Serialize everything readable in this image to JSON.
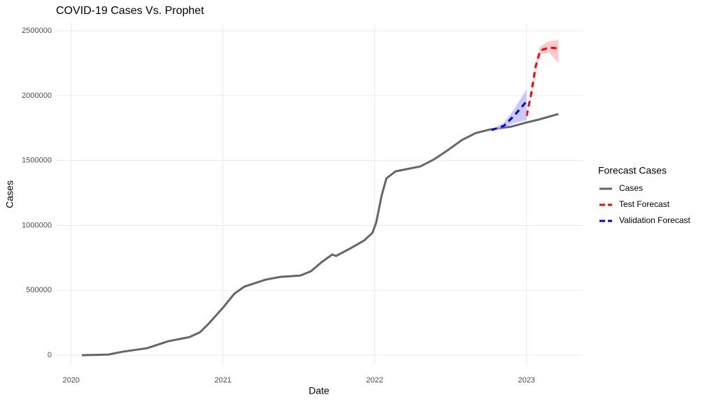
{
  "chart_data": {
    "type": "line",
    "title": "COVID-19 Cases Vs. Prophet",
    "x_label": "Date",
    "y_label": "Cases",
    "legend_title": "Forecast Cases",
    "legend": "right",
    "grid": true,
    "xlim": [
      2019.9,
      2023.37
    ],
    "xticks": [
      2020,
      2021,
      2022,
      2023
    ],
    "ylim": [
      -75000,
      2560000
    ],
    "yticks": [
      0,
      500000,
      1000000,
      1500000,
      2000000,
      2500000
    ],
    "series": [
      {
        "name": "Cases",
        "color": "#666666",
        "dashed": false,
        "x": [
          2020.07,
          2020.245,
          2020.34,
          2020.5,
          2020.64,
          2020.78,
          2020.85,
          2020.91,
          2021.0,
          2021.075,
          2021.14,
          2021.28,
          2021.375,
          2021.51,
          2021.58,
          2021.65,
          2021.72,
          2021.745,
          2021.84,
          2021.93,
          2021.985,
          2022.01,
          2022.045,
          2022.077,
          2022.137,
          2022.3,
          2022.39,
          2022.48,
          2022.575,
          2022.667,
          2022.76,
          2022.9,
          2023.0,
          2023.08,
          2023.21
        ],
        "values": [
          0,
          5000,
          27000,
          54000,
          108000,
          140000,
          178000,
          248000,
          366000,
          474000,
          528000,
          582000,
          603000,
          614000,
          647000,
          717000,
          776000,
          765000,
          824000,
          884000,
          943000,
          1024000,
          1228000,
          1363000,
          1417000,
          1455000,
          1509000,
          1579000,
          1659000,
          1713000,
          1740000,
          1762000,
          1794000,
          1816000,
          1859000
        ]
      },
      {
        "name": "Test Forecast",
        "color": "#ff0000",
        "dashed": true,
        "band_color": "#ffb3b3",
        "x": [
          2023.0,
          2023.03,
          2023.06,
          2023.09,
          2023.15,
          2023.21
        ],
        "values": [
          1843000,
          2010000,
          2225000,
          2349000,
          2371000,
          2365000
        ],
        "lower": [
          1830000,
          1990000,
          2200000,
          2320000,
          2330000,
          2250000
        ],
        "upper": [
          1860000,
          2030000,
          2250000,
          2380000,
          2420000,
          2430000
        ]
      },
      {
        "name": "Validation Forecast",
        "color": "#0000ff",
        "dashed": true,
        "band_color": "#b3b3ff",
        "x": [
          2022.77,
          2022.85,
          2022.92,
          2023.0
        ],
        "values": [
          1735000,
          1767000,
          1848000,
          1956000
        ],
        "lower": [
          1730000,
          1755000,
          1790000,
          1810000
        ],
        "upper": [
          1740000,
          1790000,
          1900000,
          2050000
        ]
      }
    ]
  }
}
